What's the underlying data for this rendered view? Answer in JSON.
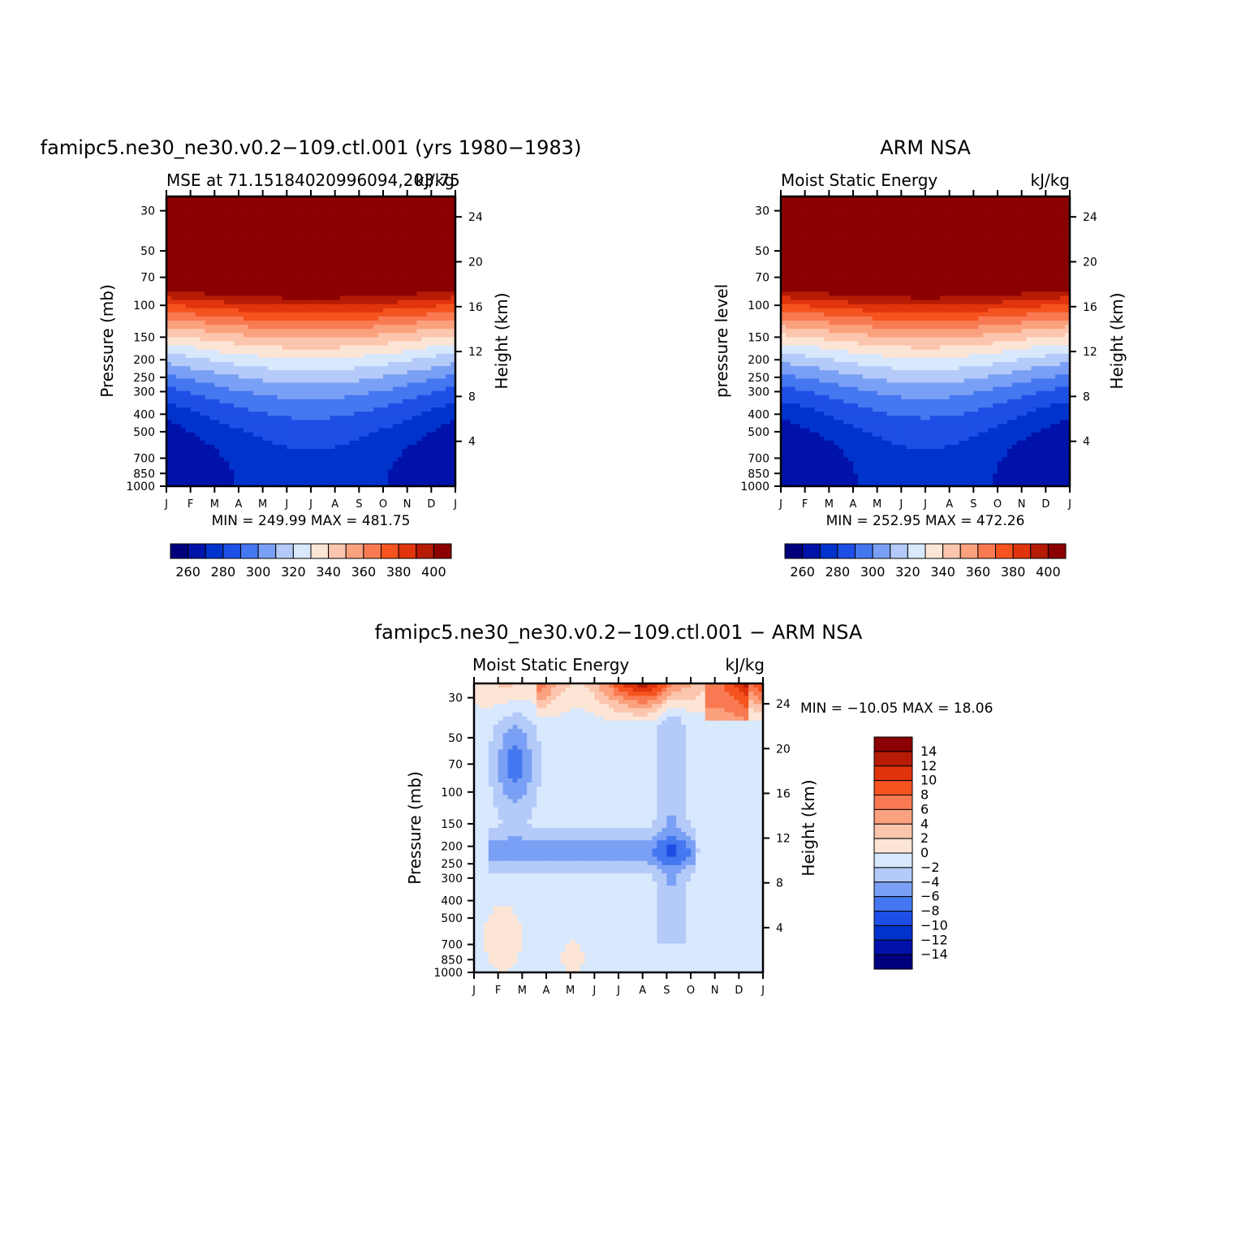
{
  "colors": {
    "palette": [
      "#00007f",
      "#0012aa",
      "#0033cc",
      "#1d4fe6",
      "#4477f0",
      "#7aa0f5",
      "#b4caf9",
      "#d8e8fd",
      "#fde5d6",
      "#fcc6ae",
      "#fba17e",
      "#f97a52",
      "#f5531f",
      "#e0340d",
      "#b51b05",
      "#8b0000"
    ],
    "frame": "#000000"
  },
  "panel1": {
    "title": "famipc5.ne30_ne30.v0.2−109.ctl.001 (yrs 1980−1983)",
    "left_string": "MSE at 71.15184020996094,203.75",
    "right_string": "kJ/kg",
    "ylabel": "Pressure (mb)",
    "ylabel_right": "Height (km)",
    "minmax": "MIN = 249.99 MAX = 481.75"
  },
  "panel2": {
    "title": "ARM NSA",
    "left_string": "Moist Static Energy",
    "right_string": "kJ/kg",
    "ylabel": "pressure level",
    "ylabel_right": "Height (km)",
    "minmax": "MIN = 252.95 MAX = 472.26"
  },
  "panel3": {
    "title": "famipc5.ne30_ne30.v0.2−109.ctl.001 − ARM NSA",
    "left_string": "Moist Static Energy",
    "right_string": "kJ/kg",
    "ylabel": "Pressure (mb)",
    "ylabel_right": "Height (km)",
    "minmax": "MIN = −10.05 MAX =   18.06"
  },
  "chart_data": [
    {
      "type": "heatmap",
      "title": "famipc5.ne30_ne30.v0.2−109.ctl.001 (yrs 1980−1983)",
      "subtitle": "MSE at 71.15184020996094,203.75",
      "units": "kJ/kg",
      "x_ticks": [
        "J",
        "F",
        "M",
        "A",
        "M",
        "J",
        "J",
        "A",
        "S",
        "O",
        "N",
        "D",
        "J"
      ],
      "y_ticks_pressure": [
        30,
        50,
        70,
        100,
        150,
        200,
        250,
        300,
        400,
        500,
        700,
        850,
        1000
      ],
      "y_ticks_height": [
        24,
        20,
        16,
        12,
        8,
        4
      ],
      "xlabel": "",
      "ylabel": "Pressure (mb)",
      "ylabel_right": "Height (km)",
      "y_scale": "log",
      "ylim": [
        1000,
        25
      ],
      "min": 249.99,
      "max": 481.75,
      "colorbar_levels": [
        255,
        260,
        265,
        270,
        275,
        280,
        285,
        290,
        295,
        300,
        305,
        310,
        315,
        320,
        325,
        330,
        335,
        340,
        345,
        350,
        355,
        360,
        365,
        370,
        375,
        380,
        385,
        390,
        395,
        400
      ],
      "colorbar_labels": [
        "260",
        "280",
        "300",
        "320",
        "340",
        "360",
        "380",
        "400"
      ]
    },
    {
      "type": "heatmap",
      "title": "ARM NSA",
      "subtitle": "Moist Static Energy",
      "units": "kJ/kg",
      "x_ticks": [
        "J",
        "F",
        "M",
        "A",
        "M",
        "J",
        "J",
        "A",
        "S",
        "O",
        "N",
        "D",
        "J"
      ],
      "y_ticks_pressure": [
        30,
        50,
        70,
        100,
        150,
        200,
        250,
        300,
        400,
        500,
        700,
        850,
        1000
      ],
      "y_ticks_height": [
        24,
        20,
        16,
        12,
        8,
        4
      ],
      "xlabel": "",
      "ylabel": "pressure level",
      "ylabel_right": "Height (km)",
      "y_scale": "log",
      "ylim": [
        1000,
        25
      ],
      "min": 252.95,
      "max": 472.26,
      "colorbar_labels": [
        "260",
        "280",
        "300",
        "320",
        "340",
        "360",
        "380",
        "400"
      ]
    },
    {
      "type": "heatmap",
      "title": "famipc5.ne30_ne30.v0.2−109.ctl.001 − ARM NSA",
      "subtitle": "Moist Static Energy",
      "units": "kJ/kg",
      "x_ticks": [
        "J",
        "F",
        "M",
        "A",
        "M",
        "J",
        "J",
        "A",
        "S",
        "O",
        "N",
        "D",
        "J"
      ],
      "y_ticks_pressure": [
        30,
        50,
        70,
        100,
        150,
        200,
        250,
        300,
        400,
        500,
        700,
        850,
        1000
      ],
      "y_ticks_height": [
        24,
        20,
        16,
        12,
        8,
        4
      ],
      "xlabel": "",
      "ylabel": "Pressure (mb)",
      "ylabel_right": "Height (km)",
      "y_scale": "log",
      "ylim": [
        1000,
        25
      ],
      "min": -10.05,
      "max": 18.06,
      "colorbar_labels": [
        "14",
        "12",
        "10",
        "8",
        "6",
        "4",
        "2",
        "0",
        "−2",
        "−4",
        "−6",
        "−8",
        "−10",
        "−12",
        "−14"
      ]
    }
  ]
}
